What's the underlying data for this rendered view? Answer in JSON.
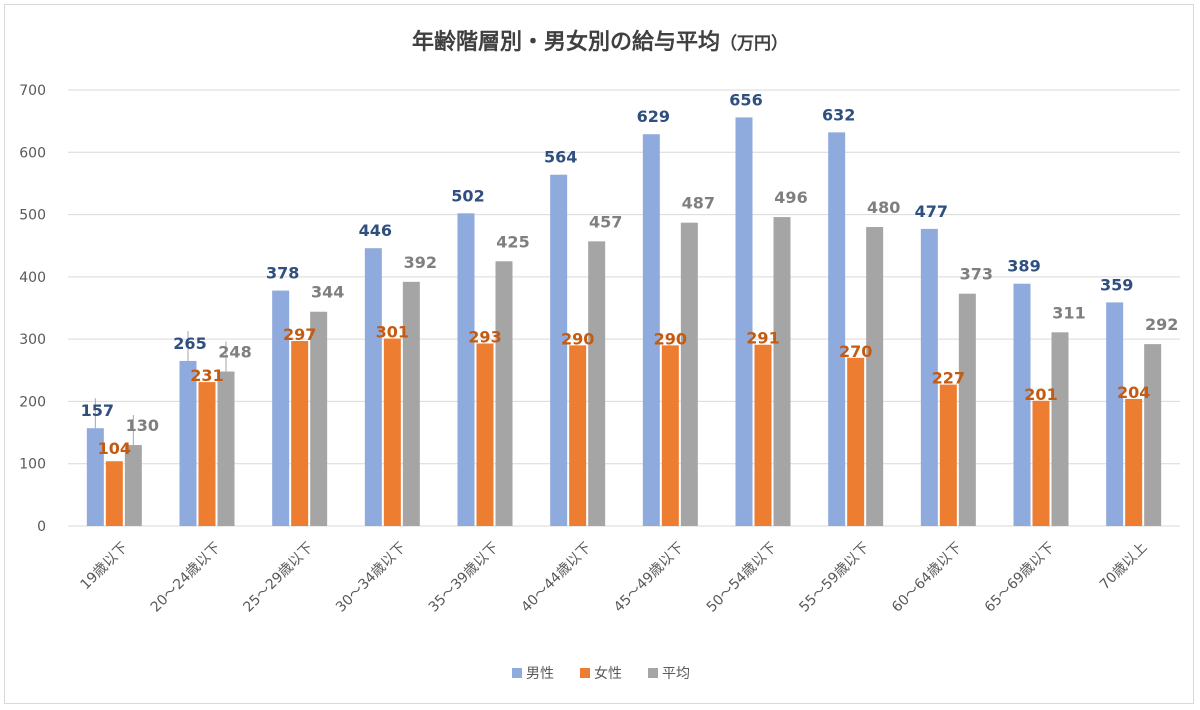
{
  "chart_data": {
    "type": "bar",
    "title": "年齢階層別・男女別の給与平均",
    "title_unit": "（万円）",
    "categories": [
      "19歳以下",
      "20～24歳以下",
      "25～29歳以下",
      "30～34歳以下",
      "35～39歳以下",
      "40～44歳以下",
      "45～49歳以下",
      "50～54歳以下",
      "55～59歳以下",
      "60～64歳以下",
      "65～69歳以下",
      "70歳以上"
    ],
    "series": [
      {
        "name": "男性",
        "color": "#8faadc",
        "label_color": "#2f4f7f",
        "values": [
          157,
          265,
          378,
          446,
          502,
          564,
          629,
          656,
          632,
          477,
          389,
          359
        ]
      },
      {
        "name": "女性",
        "color": "#ed7d31",
        "label_color": "#c55a11",
        "values": [
          104,
          231,
          297,
          301,
          293,
          290,
          290,
          291,
          270,
          227,
          201,
          204
        ]
      },
      {
        "name": "平均",
        "color": "#a5a5a5",
        "label_color": "#7f7f7f",
        "values": [
          130,
          248,
          344,
          392,
          425,
          457,
          487,
          496,
          480,
          373,
          311,
          292
        ]
      }
    ],
    "ylim": [
      0,
      700
    ],
    "yticks": [
      0,
      100,
      200,
      300,
      400,
      500,
      600,
      700
    ],
    "grid": true,
    "legend_position": "bottom"
  }
}
